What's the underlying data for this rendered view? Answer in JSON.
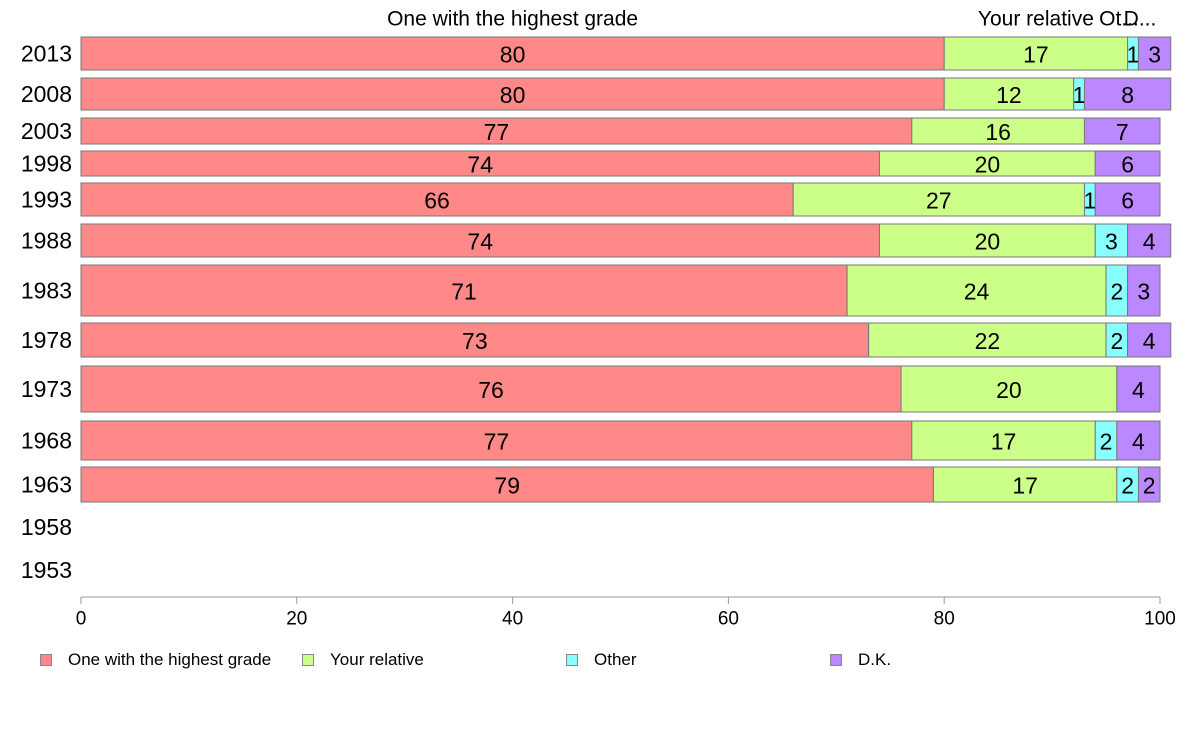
{
  "chart_data": {
    "type": "bar",
    "orientation": "horizontal",
    "stacked": true,
    "categories": [
      "2013",
      "2008",
      "2003",
      "1998",
      "1993",
      "1988",
      "1983",
      "1978",
      "1973",
      "1968",
      "1963",
      "1958",
      "1953"
    ],
    "series": [
      {
        "name": "One with the highest grade",
        "color": "#ff8888",
        "values": [
          80,
          80,
          77,
          74,
          66,
          74,
          71,
          73,
          76,
          77,
          79,
          null,
          null
        ]
      },
      {
        "name": "Your relative",
        "color": "#ccff88",
        "values": [
          17,
          12,
          16,
          20,
          27,
          20,
          24,
          22,
          20,
          17,
          17,
          null,
          null
        ]
      },
      {
        "name": "Other",
        "color": "#88ffff",
        "values": [
          1,
          1,
          0,
          0,
          1,
          3,
          2,
          2,
          0,
          2,
          2,
          null,
          null
        ]
      },
      {
        "name": "D.K.",
        "color": "#bb88ff",
        "values": [
          3,
          8,
          7,
          6,
          6,
          4,
          3,
          4,
          4,
          4,
          2,
          null,
          null
        ]
      }
    ],
    "column_headers": [
      "One with the highest grade",
      "Your relative",
      "Ot...",
      "D..."
    ],
    "xlim": [
      0,
      100
    ],
    "xticks": [
      0,
      20,
      40,
      60,
      80,
      100
    ],
    "legend_position": "bottom",
    "grid": false
  }
}
